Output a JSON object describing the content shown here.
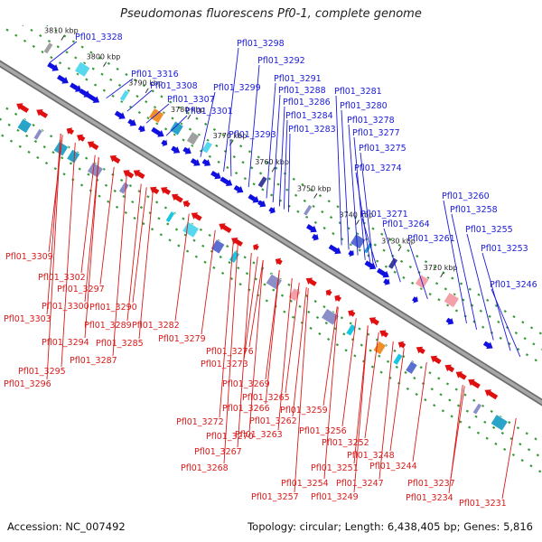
{
  "title": "Pseudomonas fluorescens Pf0-1, complete genome",
  "accession": "Accession: NC_007492",
  "summary": "Topology: circular; Length: 6,438,405 bp; Genes: 5,816",
  "colors": {
    "backbone": "#888888",
    "forward_gene": "#1010e0",
    "reverse_gene": "#e01010",
    "forward_label": "#1a1ad8",
    "reverse_label": "#d81a1a",
    "tick": "#3a9a3a"
  },
  "kbp_ticks": [
    "3810 kbp",
    "3800 kbp",
    "3790 kbp",
    "3780 kbp",
    "3770 kbp",
    "3760 kbp",
    "3750 kbp",
    "3740 kbp",
    "3730 kbp",
    "3720 kbp"
  ],
  "forward_labels": [
    "Pfl01_3328",
    "Pfl01_3316",
    "Pfl01_3308",
    "Pfl01_3307",
    "Pfl01_3301",
    "Pfl01_3298",
    "Pfl01_3299",
    "Pfl01_3292",
    "Pfl01_3291",
    "Pfl01_3288",
    "Pfl01_3286",
    "Pfl01_3284",
    "Pfl01_3283",
    "Pfl01_3293",
    "Pfl01_3281",
    "Pfl01_3280",
    "Pfl01_3278",
    "Pfl01_3277",
    "Pfl01_3275",
    "Pfl01_3274",
    "Pfl01_3271",
    "Pfl01_3264",
    "Pfl01_3261",
    "Pfl01_3260",
    "Pfl01_3258",
    "Pfl01_3255",
    "Pfl01_3253",
    "Pfl01_3246"
  ],
  "reverse_labels": [
    "Pfl01_3309",
    "Pfl01_3302",
    "Pfl01_3297",
    "Pfl01_3300",
    "Pfl01_3303",
    "Pfl01_3290",
    "Pfl01_3289",
    "Pfl01_3282",
    "Pfl01_3294",
    "Pfl01_3285",
    "Pfl01_3279",
    "Pfl01_3287",
    "Pfl01_3295",
    "Pfl01_3296",
    "Pfl01_3276",
    "Pfl01_3273",
    "Pfl01_3269",
    "Pfl01_3265",
    "Pfl01_3266",
    "Pfl01_3262",
    "Pfl01_3259",
    "Pfl01_3272",
    "Pfl01_3263",
    "Pfl01_3270",
    "Pfl01_3267",
    "Pfl01_3268",
    "Pfl01_3256",
    "Pfl01_3252",
    "Pfl01_3248",
    "Pfl01_3251",
    "Pfl01_3244",
    "Pfl01_3254",
    "Pfl01_3247",
    "Pfl01_3257",
    "Pfl01_3249",
    "Pfl01_3237",
    "Pfl01_3234",
    "Pfl01_3231"
  ]
}
